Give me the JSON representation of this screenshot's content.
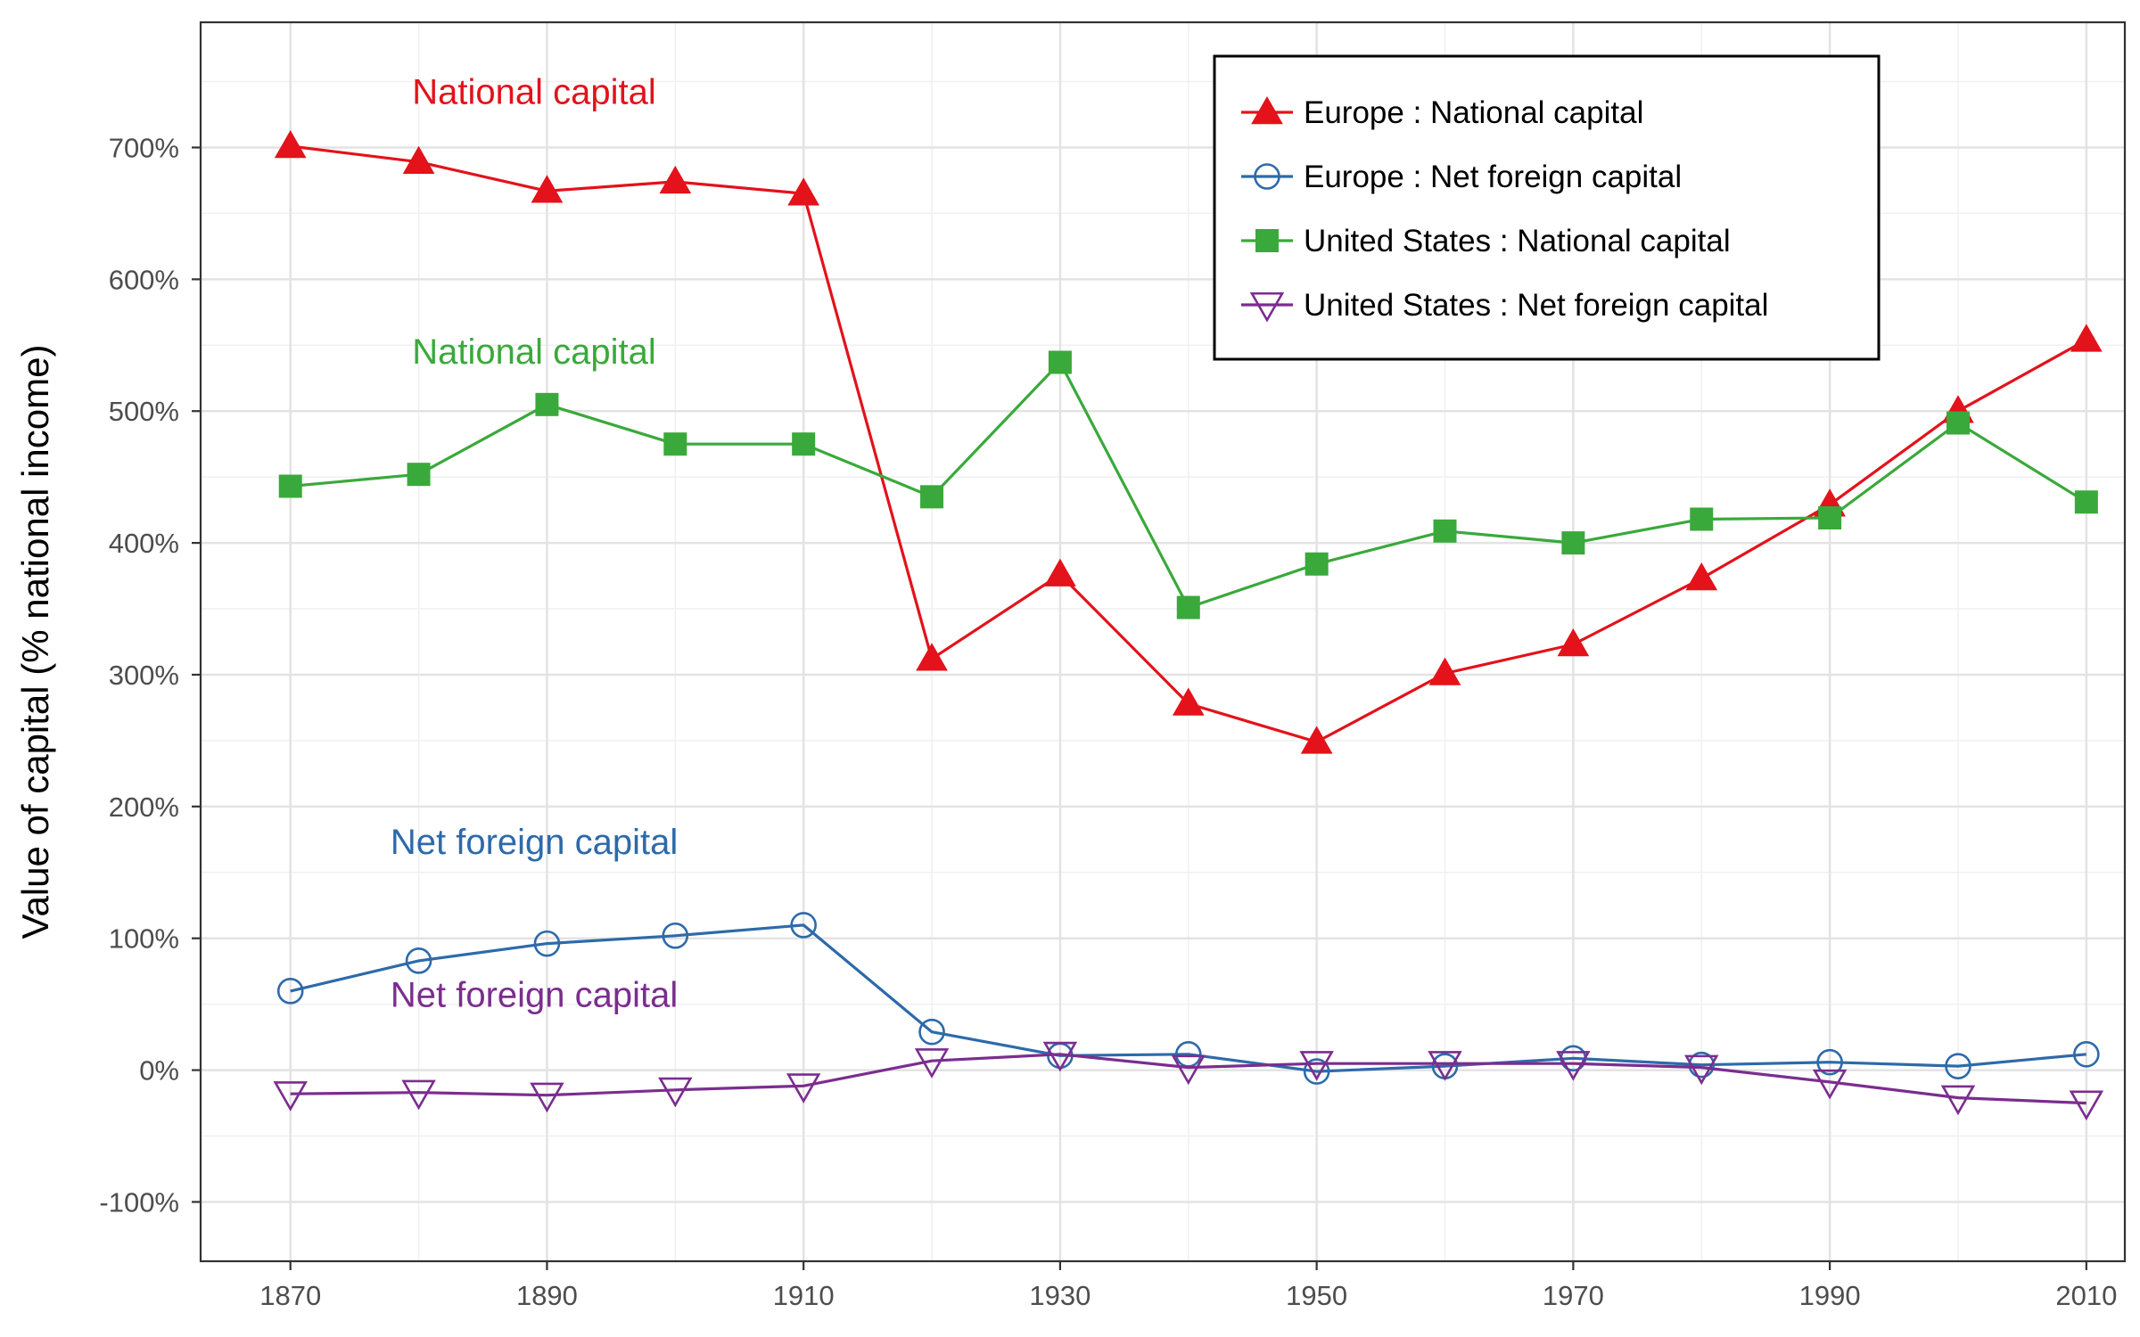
{
  "chart_data": {
    "type": "line",
    "ylabel": "Value of capital (% national income)",
    "xlabel": "",
    "x": [
      1870,
      1880,
      1890,
      1900,
      1910,
      1920,
      1930,
      1940,
      1950,
      1960,
      1970,
      1980,
      1990,
      2000,
      2010
    ],
    "xlim": [
      1863,
      2013
    ],
    "ylim": [
      -145,
      795
    ],
    "x_ticks": [
      1870,
      1890,
      1910,
      1930,
      1950,
      1970,
      1990,
      2010
    ],
    "x_tick_labels": [
      "1870",
      "1890",
      "1910",
      "1930",
      "1950",
      "1970",
      "1990",
      "2010"
    ],
    "y_ticks": [
      -100,
      0,
      100,
      200,
      300,
      400,
      500,
      600,
      700
    ],
    "y_tick_labels": [
      "-100%",
      "0%",
      "100%",
      "200%",
      "300%",
      "400%",
      "500%",
      "600%",
      "700%"
    ],
    "grid": true,
    "legend_position": "top-right",
    "series": [
      {
        "name": "Europe : National capital",
        "color": "#e3121b",
        "marker": "triangle-filled",
        "values": [
          701,
          689,
          667,
          674,
          665,
          312,
          376,
          278,
          249,
          301,
          323,
          373,
          429,
          500,
          554
        ]
      },
      {
        "name": "Europe : Net foreign capital",
        "color": "#2d6aaa",
        "marker": "circle-open",
        "values": [
          60,
          83,
          96,
          102,
          110,
          29,
          11,
          12,
          -1,
          3,
          9,
          4,
          6,
          3,
          12
        ]
      },
      {
        "name": "United States : National capital",
        "color": "#3aa93b",
        "marker": "square-filled",
        "values": [
          443,
          452,
          505,
          475,
          475,
          435,
          537,
          351,
          384,
          409,
          400,
          418,
          419,
          491,
          431
        ]
      },
      {
        "name": "United States : Net foreign capital",
        "color": "#7b2d8e",
        "marker": "triangle-down-open",
        "values": [
          -18,
          -17,
          -19,
          -15,
          -12,
          7,
          12,
          2,
          5,
          5,
          5,
          2,
          -9,
          -21,
          -25
        ]
      }
    ],
    "annotations": [
      {
        "text": "National capital",
        "color": "#e3121b",
        "x": 1889,
        "y": 733
      },
      {
        "text": "National capital",
        "color": "#3aa93b",
        "x": 1889,
        "y": 536
      },
      {
        "text": "Net foreign capital",
        "color": "#2d6aaa",
        "x": 1889,
        "y": 164
      },
      {
        "text": "Net foreign capital",
        "color": "#7b2d8e",
        "x": 1889,
        "y": 48
      }
    ]
  }
}
